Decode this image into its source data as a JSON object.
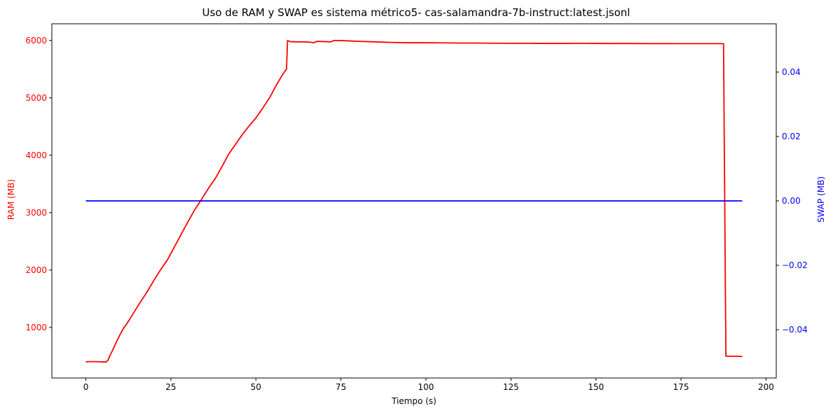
{
  "chart_data": {
    "type": "line",
    "title": "Uso de RAM y  SWAP es sistema métrico5- cas-salamandra-7b-instruct:latest.jsonl",
    "xlabel": "Tiempo (s)",
    "ylabel_left": "RAM (MB)",
    "ylabel_right": "SWAP (MB)",
    "xlim": [
      -10,
      203
    ],
    "ylim_left": [
      120,
      6290
    ],
    "ylim_right": [
      -0.055,
      0.055
    ],
    "x_ticks": [
      0,
      25,
      50,
      75,
      100,
      125,
      150,
      175,
      200
    ],
    "y_left_ticks": [
      1000,
      2000,
      3000,
      4000,
      5000,
      6000
    ],
    "y_right_ticks": [
      0.04,
      0.02,
      0.0,
      -0.02,
      -0.04
    ],
    "y_right_tick_labels": [
      "0.04",
      "0.02",
      "0.00",
      "−0.02",
      "−0.04"
    ],
    "grid": false,
    "series": [
      {
        "axis": "left",
        "color": "#ff0000",
        "x": [
          0,
          1,
          3,
          5,
          6,
          6.5,
          7,
          8,
          9,
          10,
          11,
          12,
          14,
          16,
          18,
          20,
          22,
          24,
          26,
          28,
          30,
          32,
          34,
          36,
          38,
          40,
          42,
          44,
          46,
          48,
          50,
          52,
          54,
          56,
          58,
          59,
          59.3,
          60,
          62,
          64,
          66,
          67,
          68,
          70,
          72,
          73,
          76,
          80,
          85,
          90,
          95,
          100,
          105,
          110,
          115,
          120,
          125,
          130,
          135,
          140,
          145,
          150,
          155,
          160,
          165,
          170,
          175,
          180,
          182,
          185,
          187.5,
          188,
          188.2,
          190,
          193
        ],
        "y": [
          400,
          405,
          405,
          400,
          400,
          430,
          500,
          620,
          750,
          870,
          980,
          1060,
          1250,
          1440,
          1620,
          1820,
          2010,
          2180,
          2400,
          2620,
          2840,
          3050,
          3230,
          3420,
          3590,
          3800,
          4020,
          4190,
          4360,
          4510,
          4650,
          4820,
          5000,
          5220,
          5420,
          5500,
          6000,
          5980,
          5975,
          5975,
          5970,
          5960,
          5985,
          5980,
          5975,
          6000,
          5995,
          5985,
          5975,
          5965,
          5960,
          5960,
          5958,
          5955,
          5955,
          5952,
          5950,
          5950,
          5948,
          5948,
          5950,
          5948,
          5946,
          5946,
          5945,
          5945,
          5944,
          5944,
          5944,
          5944,
          5944,
          2000,
          500,
          500,
          495
        ]
      },
      {
        "axis": "right",
        "color": "#0000ff",
        "x": [
          0,
          193
        ],
        "y": [
          0,
          0
        ]
      }
    ]
  }
}
